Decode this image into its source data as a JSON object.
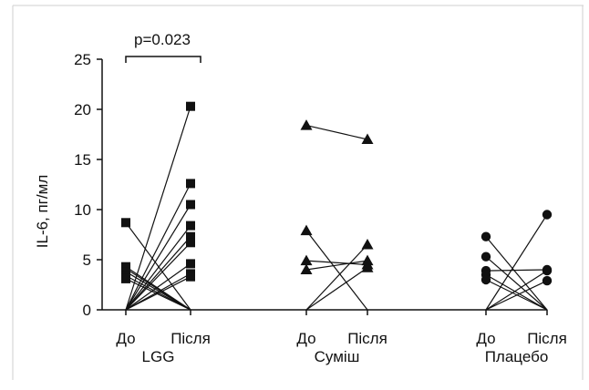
{
  "chart_data": {
    "type": "scatter",
    "title": "",
    "xlabel": "",
    "ylabel": "IL-6, пг/мл",
    "ylim": [
      0,
      25
    ],
    "yticks": [
      0,
      5,
      10,
      15,
      20,
      25
    ],
    "grid": false,
    "legend": "none",
    "annotation": {
      "text": "p=0.023",
      "group": "LGG"
    },
    "groups": [
      {
        "name": "LGG",
        "marker": "square",
        "before_label": "До",
        "after_label": "Після",
        "pairs": [
          [
            8.7,
            0
          ],
          [
            4.3,
            0
          ],
          [
            4.1,
            0
          ],
          [
            3.8,
            0
          ],
          [
            3.4,
            0
          ],
          [
            3.1,
            0
          ],
          [
            0,
            20.3
          ],
          [
            0,
            12.6
          ],
          [
            0,
            10.5
          ],
          [
            0,
            8.4
          ],
          [
            0,
            7.3
          ],
          [
            0,
            6.7
          ],
          [
            0,
            4.6
          ],
          [
            0,
            3.6
          ],
          [
            0,
            3.3
          ]
        ]
      },
      {
        "name": "Суміш",
        "marker": "triangle",
        "before_label": "До",
        "after_label": "Після",
        "pairs": [
          [
            18.4,
            17.0
          ],
          [
            7.9,
            0
          ],
          [
            4.9,
            4.5
          ],
          [
            4.0,
            4.9
          ],
          [
            0,
            6.5
          ],
          [
            0,
            4.2
          ]
        ]
      },
      {
        "name": "Плацебо",
        "marker": "circle",
        "before_label": "До",
        "after_label": "Після",
        "pairs": [
          [
            7.3,
            0
          ],
          [
            5.3,
            0
          ],
          [
            3.9,
            4.0
          ],
          [
            3.5,
            0
          ],
          [
            3.0,
            0
          ],
          [
            0,
            9.5
          ],
          [
            0,
            3.9
          ],
          [
            0,
            2.9
          ]
        ]
      }
    ]
  }
}
